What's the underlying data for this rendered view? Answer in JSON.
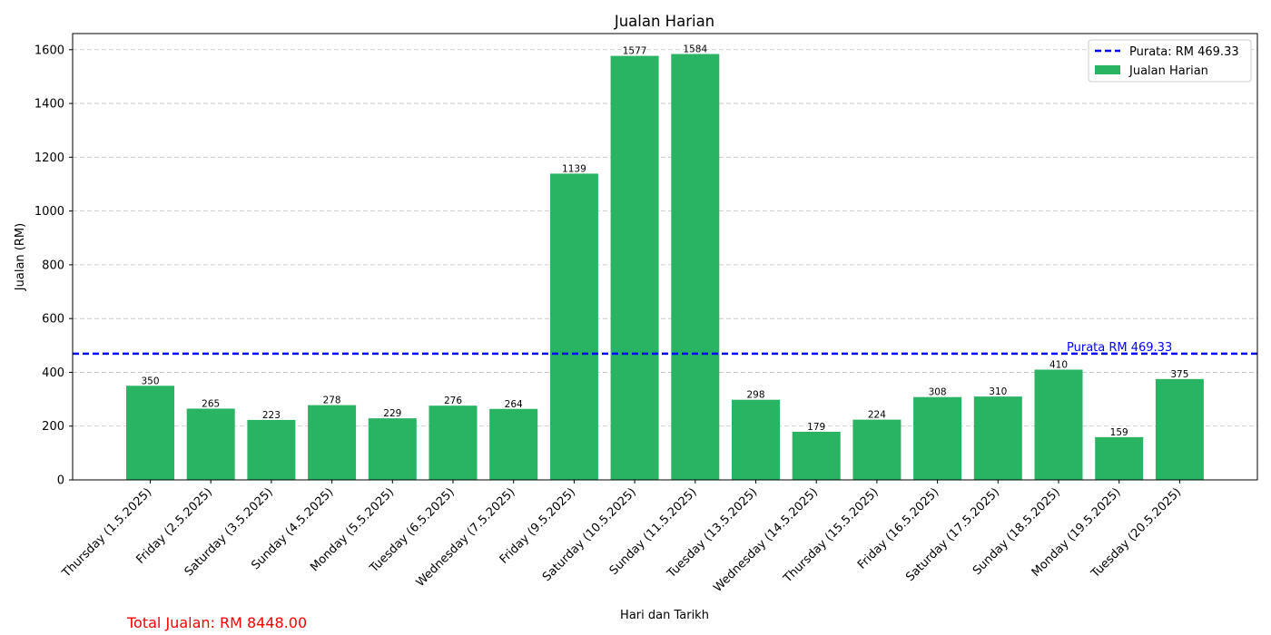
{
  "chart_data": {
    "type": "bar",
    "title": "Jualan Harian",
    "xlabel": "Hari dan Tarikh",
    "ylabel": "Jualan (RM)",
    "ylim": [
      0,
      1660
    ],
    "yticks": [
      0,
      200,
      400,
      600,
      800,
      1000,
      1200,
      1400,
      1600
    ],
    "grid": "y-dashed",
    "categories": [
      "Thursday (1.5.2025)",
      "Friday (2.5.2025)",
      "Saturday (3.5.2025)",
      "Sunday (4.5.2025)",
      "Monday (5.5.2025)",
      "Tuesday (6.5.2025)",
      "Wednesday (7.5.2025)",
      "Friday (9.5.2025)",
      "Saturday (10.5.2025)",
      "Sunday (11.5.2025)",
      "Tuesday (13.5.2025)",
      "Wednesday (14.5.2025)",
      "Thursday (15.5.2025)",
      "Friday (16.5.2025)",
      "Saturday (17.5.2025)",
      "Sunday (18.5.2025)",
      "Monday (19.5.2025)",
      "Tuesday (20.5.2025)"
    ],
    "series": [
      {
        "name": "Jualan Harian",
        "color": "#28b463",
        "values": [
          350,
          265,
          223,
          278,
          229,
          276,
          264,
          1139,
          1577,
          1584,
          298,
          179,
          224,
          308,
          310,
          410,
          159,
          375
        ],
        "labels": [
          "350",
          "265",
          "223",
          "278",
          "229",
          "276",
          "264",
          "1139",
          "1577",
          "1584",
          "298",
          "179",
          "224",
          "308",
          "310",
          "410",
          "159",
          "375"
        ]
      }
    ],
    "average_line": {
      "value": 469.33,
      "color": "#0000ff",
      "legend_label": "Purata: RM 469.33",
      "annotation": "Purata RM 469.33"
    },
    "legend": {
      "position": "top-right",
      "entries": [
        "Purata: RM 469.33",
        "Jualan Harian"
      ]
    },
    "footer": {
      "total_text": "Total Jualan: RM 8448.00",
      "color": "#ff0000"
    }
  }
}
